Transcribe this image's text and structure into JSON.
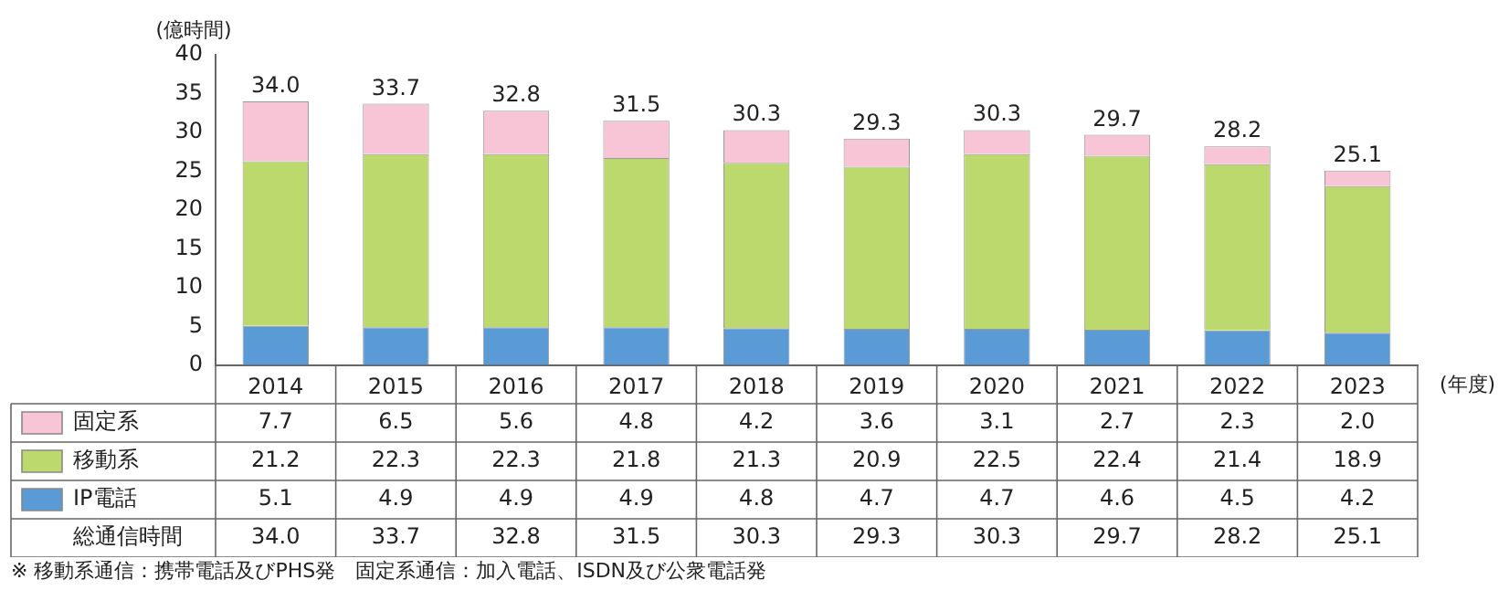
{
  "chart_data": {
    "type": "bar",
    "stacked": true,
    "ylabel": "(億時間)",
    "xlabel": "(年度)",
    "categories": [
      "2014",
      "2015",
      "2016",
      "2017",
      "2018",
      "2019",
      "2020",
      "2021",
      "2022",
      "2023"
    ],
    "series": [
      {
        "name": "IP電話",
        "color": "#5b9bd5",
        "values": [
          5.1,
          4.9,
          4.9,
          4.9,
          4.8,
          4.7,
          4.7,
          4.6,
          4.5,
          4.2
        ],
        "value_labels": [
          "5.1",
          "4.9",
          "4.9",
          "4.9",
          "4.8",
          "4.7",
          "4.7",
          "4.6",
          "4.5",
          "4.2"
        ]
      },
      {
        "name": "移動系",
        "color": "#bcd96e",
        "values": [
          21.2,
          22.3,
          22.3,
          21.8,
          21.3,
          20.9,
          22.5,
          22.4,
          21.4,
          18.9
        ],
        "value_labels": [
          "21.2",
          "22.3",
          "22.3",
          "21.8",
          "21.3",
          "20.9",
          "22.5",
          "22.4",
          "21.4",
          "18.9"
        ]
      },
      {
        "name": "固定系",
        "color": "#f7c5d5",
        "values": [
          7.7,
          6.5,
          5.6,
          4.8,
          4.2,
          3.6,
          3.1,
          2.7,
          2.3,
          2.0
        ],
        "value_labels": [
          "7.7",
          "6.5",
          "5.6",
          "4.8",
          "4.2",
          "3.6",
          "3.1",
          "2.7",
          "2.3",
          "2.0"
        ]
      }
    ],
    "totals": [
      "34.0",
      "33.7",
      "32.8",
      "31.5",
      "30.3",
      "29.3",
      "30.3",
      "29.7",
      "28.2",
      "25.1"
    ],
    "ylim": [
      0,
      40
    ],
    "yticks": [
      0,
      5,
      10,
      15,
      20,
      25,
      30,
      35,
      40
    ],
    "grid": false,
    "legend": "bottom",
    "annotations": [
      "総通信時間",
      "※ 移動系通信：携帯電話及びPHS発　固定系通信：加入電話、ISDN及び公衆電話発"
    ]
  }
}
